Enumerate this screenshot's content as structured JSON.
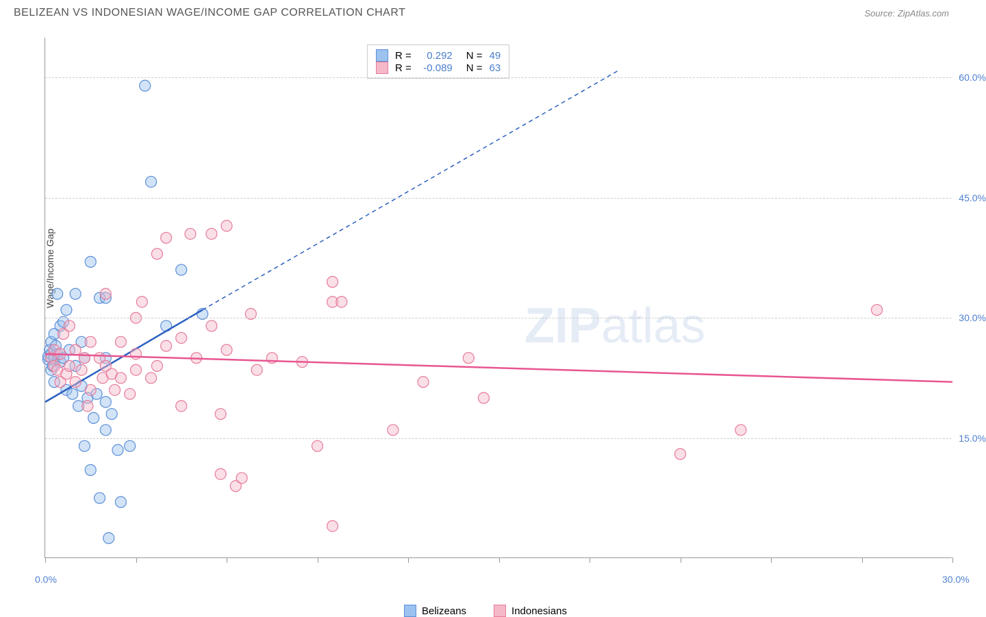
{
  "header": {
    "title": "BELIZEAN VS INDONESIAN WAGE/INCOME GAP CORRELATION CHART",
    "source": "Source: ZipAtlas.com"
  },
  "watermark": {
    "part1": "ZIP",
    "part2": "atlas"
  },
  "chart": {
    "type": "scatter",
    "y_label": "Wage/Income Gap",
    "xlim": [
      0,
      30
    ],
    "ylim": [
      0,
      65
    ],
    "background_color": "#ffffff",
    "grid_color": "#cccccc",
    "axis_color": "#999999",
    "y_ticks": [
      15,
      30,
      45,
      60
    ],
    "y_tick_labels": [
      "15.0%",
      "30.0%",
      "45.0%",
      "60.0%"
    ],
    "x_ticks": [
      0,
      3,
      6,
      9,
      12,
      15,
      18,
      21,
      24,
      27,
      30
    ],
    "x_tick_labels": {
      "0": "0.0%",
      "30": "30.0%"
    },
    "marker_radius": 8,
    "marker_opacity": 0.45,
    "tick_label_color": "#5080d0",
    "series": [
      {
        "name": "Belizeans",
        "color_fill": "#9cc2f0",
        "color_stroke": "#5a8fd6",
        "R": "0.292",
        "N": "49",
        "trend": {
          "x1": 0,
          "y1": 19.5,
          "x2": 5.2,
          "y2": 31,
          "extend_x2": 19,
          "extend_y2": 61,
          "color": "#2a5fc0",
          "width": 2.5
        },
        "points": [
          [
            0.1,
            24.8
          ],
          [
            0.1,
            25.2
          ],
          [
            0.15,
            26
          ],
          [
            0.2,
            23.5
          ],
          [
            0.2,
            25.5
          ],
          [
            0.2,
            27
          ],
          [
            0.25,
            24
          ],
          [
            0.3,
            22
          ],
          [
            0.3,
            25
          ],
          [
            0.3,
            28
          ],
          [
            0.35,
            26.5
          ],
          [
            0.4,
            25.5
          ],
          [
            0.4,
            33
          ],
          [
            0.5,
            24.5
          ],
          [
            0.5,
            29
          ],
          [
            0.6,
            25
          ],
          [
            0.6,
            29.5
          ],
          [
            0.7,
            21
          ],
          [
            0.7,
            31
          ],
          [
            0.8,
            26
          ],
          [
            0.9,
            20.5
          ],
          [
            1.0,
            24
          ],
          [
            1.0,
            33
          ],
          [
            1.1,
            19
          ],
          [
            1.2,
            21.5
          ],
          [
            1.2,
            27
          ],
          [
            1.3,
            14
          ],
          [
            1.3,
            25
          ],
          [
            1.4,
            20
          ],
          [
            1.5,
            11
          ],
          [
            1.5,
            37
          ],
          [
            1.6,
            17.5
          ],
          [
            1.7,
            20.5
          ],
          [
            1.8,
            7.5
          ],
          [
            1.8,
            32.5
          ],
          [
            2.0,
            16
          ],
          [
            2.0,
            19.5
          ],
          [
            2.0,
            25
          ],
          [
            2.0,
            32.5
          ],
          [
            2.1,
            2.5
          ],
          [
            2.2,
            18
          ],
          [
            2.4,
            13.5
          ],
          [
            2.5,
            7
          ],
          [
            2.8,
            14
          ],
          [
            3.3,
            59
          ],
          [
            3.5,
            47
          ],
          [
            4.0,
            29
          ],
          [
            4.5,
            36
          ],
          [
            5.2,
            30.5
          ]
        ]
      },
      {
        "name": "Indonesians",
        "color_fill": "#f5b8c8",
        "color_stroke": "#e67a9a",
        "R": "-0.089",
        "N": "63",
        "trend": {
          "x1": 0,
          "y1": 25.5,
          "x2": 30,
          "y2": 22,
          "color": "#e85590",
          "width": 2.5
        },
        "points": [
          [
            0.2,
            25
          ],
          [
            0.3,
            24
          ],
          [
            0.3,
            26
          ],
          [
            0.4,
            23.5
          ],
          [
            0.5,
            22
          ],
          [
            0.5,
            25.5
          ],
          [
            0.6,
            28
          ],
          [
            0.7,
            23
          ],
          [
            0.8,
            24
          ],
          [
            0.8,
            29
          ],
          [
            1.0,
            22
          ],
          [
            1.0,
            26
          ],
          [
            1.2,
            23.5
          ],
          [
            1.3,
            25
          ],
          [
            1.4,
            19
          ],
          [
            1.5,
            21
          ],
          [
            1.5,
            27
          ],
          [
            1.8,
            25
          ],
          [
            1.9,
            22.5
          ],
          [
            2.0,
            24
          ],
          [
            2.0,
            33
          ],
          [
            2.2,
            23
          ],
          [
            2.3,
            21
          ],
          [
            2.5,
            22.5
          ],
          [
            2.5,
            27
          ],
          [
            2.8,
            20.5
          ],
          [
            3.0,
            23.5
          ],
          [
            3.0,
            25.5
          ],
          [
            3.0,
            30
          ],
          [
            3.2,
            32
          ],
          [
            3.5,
            22.5
          ],
          [
            3.7,
            24
          ],
          [
            3.7,
            38
          ],
          [
            4.0,
            26.5
          ],
          [
            4.0,
            40
          ],
          [
            4.5,
            19
          ],
          [
            4.5,
            27.5
          ],
          [
            4.8,
            40.5
          ],
          [
            5.0,
            25
          ],
          [
            5.5,
            40.5
          ],
          [
            5.5,
            29
          ],
          [
            5.8,
            10.5
          ],
          [
            5.8,
            18
          ],
          [
            6.0,
            26
          ],
          [
            6.0,
            41.5
          ],
          [
            6.3,
            9
          ],
          [
            6.5,
            10
          ],
          [
            6.8,
            30.5
          ],
          [
            7.0,
            23.5
          ],
          [
            7.5,
            25
          ],
          [
            8.5,
            24.5
          ],
          [
            9.0,
            14
          ],
          [
            9.5,
            32
          ],
          [
            9.5,
            34.5
          ],
          [
            9.5,
            4
          ],
          [
            9.8,
            32
          ],
          [
            11.5,
            16
          ],
          [
            12.5,
            22
          ],
          [
            14.0,
            25
          ],
          [
            14.5,
            20
          ],
          [
            21.0,
            13
          ],
          [
            23.0,
            16
          ],
          [
            27.5,
            31
          ]
        ]
      }
    ],
    "legend_top": {
      "r_label": "R =",
      "n_label": "N =",
      "value_color": "#4a7ecc"
    },
    "legend_bottom_labels": [
      "Belizeans",
      "Indonesians"
    ]
  }
}
